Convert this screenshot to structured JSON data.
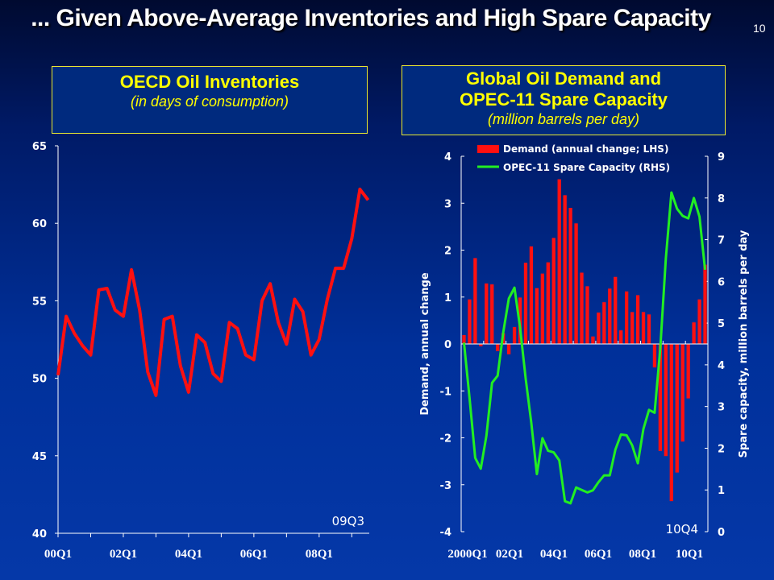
{
  "slide": {
    "title": "... Given Above-Average Inventories and High Spare Capacity",
    "page_number": "10"
  },
  "left_box": {
    "title": "OECD Oil Inventories",
    "subtitle": "(in days of consumption)"
  },
  "right_box": {
    "title_line1": "Global Oil Demand and",
    "title_line2": "OPEC-11 Spare Capacity",
    "subtitle": "(million barrels per day)"
  },
  "colors": {
    "inventory_line": "#ff1010",
    "demand_bars": "#ff1010",
    "spare_line": "#22ee22",
    "box_border": "#e8e830",
    "box_text": "#ffff00"
  },
  "chart_data": [
    {
      "type": "line",
      "start_quarter": "00Q1",
      "end_label": "09Q3",
      "x_tick_labels": [
        "00Q1",
        "02Q1",
        "04Q1",
        "06Q1",
        "08Q1"
      ],
      "y_tick_labels": [
        "40",
        "45",
        "50",
        "55",
        "60",
        "65"
      ],
      "ylim": [
        40,
        65
      ],
      "values": [
        50.2,
        54.0,
        52.9,
        52.1,
        51.5,
        55.7,
        55.8,
        54.4,
        54.0,
        57.0,
        54.4,
        50.4,
        48.9,
        53.8,
        54.0,
        50.8,
        49.1,
        52.8,
        52.3,
        50.3,
        49.8,
        53.6,
        53.2,
        51.5,
        51.2,
        55.0,
        56.1,
        53.6,
        52.2,
        55.1,
        54.3,
        51.5,
        52.5,
        55.1,
        57.1,
        57.1,
        59.0,
        62.2,
        61.5
      ]
    },
    {
      "type": "bar+line",
      "start_quarter": "2000Q1",
      "end_label": "10Q4",
      "x_tick_labels": [
        "2000Q1",
        "02Q1",
        "04Q1",
        "06Q1",
        "08Q1",
        "10Q1"
      ],
      "ylabel": "Demand, annual change",
      "y2label": "Spare capacity, million barrels per day",
      "y_tick_labels": [
        "-4",
        "-3",
        "-2",
        "-1",
        "0",
        "1",
        "2",
        "3",
        "4"
      ],
      "y2_tick_labels": [
        "0",
        "1",
        "2",
        "3",
        "4",
        "5",
        "6",
        "7",
        "8",
        "9"
      ],
      "ylim": [
        -4,
        4
      ],
      "y2lim": [
        0,
        9
      ],
      "legend_position": "top",
      "series": [
        {
          "name": "Demand (annual change; LHS)",
          "kind": "bar",
          "values": [
            0.19,
            0.95,
            1.83,
            -0.05,
            1.29,
            1.27,
            -0.15,
            0.23,
            -0.22,
            0.36,
            0.99,
            1.73,
            2.08,
            1.19,
            1.5,
            1.74,
            2.26,
            3.51,
            3.17,
            2.9,
            2.57,
            1.52,
            1.23,
            0.16,
            0.67,
            0.89,
            1.18,
            1.43,
            0.29,
            1.12,
            0.68,
            1.04,
            0.68,
            0.63,
            -0.5,
            -2.28,
            -2.39,
            -3.35,
            -2.74,
            -2.08,
            -1.16,
            0.46,
            0.95,
            1.69
          ]
        },
        {
          "name": "OPEC-11 Spare Capacity (RHS)",
          "kind": "line",
          "values": [
            4.53,
            3.2,
            1.77,
            1.51,
            2.3,
            3.57,
            3.74,
            4.78,
            5.59,
            5.85,
            4.9,
            3.67,
            2.62,
            1.38,
            2.24,
            1.94,
            1.9,
            1.71,
            0.73,
            0.68,
            1.06,
            1.0,
            0.94,
            0.99,
            1.19,
            1.35,
            1.35,
            1.97,
            2.33,
            2.31,
            2.07,
            1.64,
            2.46,
            2.92,
            2.85,
            4.38,
            6.54,
            8.13,
            7.74,
            7.57,
            7.51,
            8.0,
            7.55,
            6.28
          ]
        }
      ]
    }
  ]
}
